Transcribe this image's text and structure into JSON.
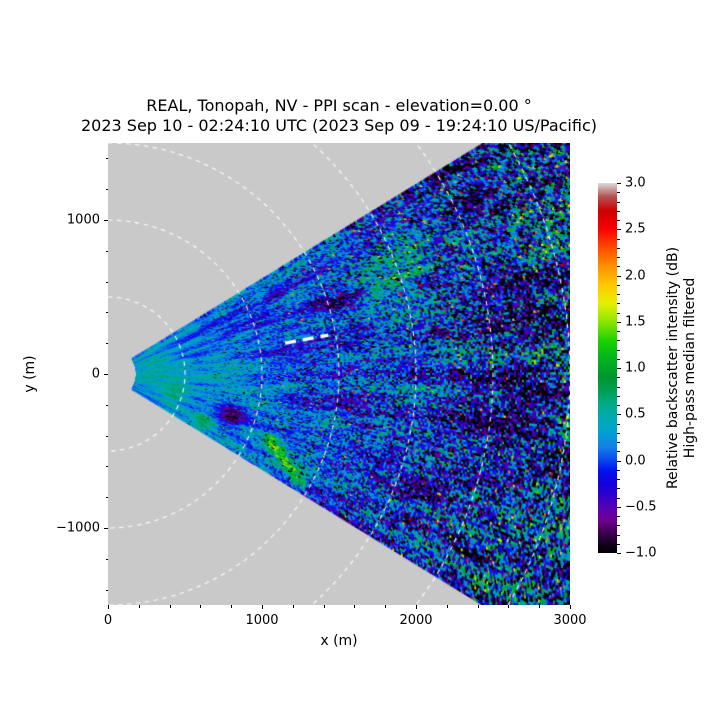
{
  "title": {
    "line1": "REAL, Tonopah, NV - PPI scan - elevation=0.00 °",
    "line2": "2023 Sep 10 - 02:24:10 UTC (2023 Sep 09 - 19:24:10 US/Pacific)"
  },
  "chart_data": {
    "type": "heatmap",
    "kind": "lidar-ppi-scan",
    "description": "Plan Position Indicator scan wedge of relative backscatter intensity, noisy speckle field, blue near-range grading to noisy black/green far-range, on gray background with white dashed range rings",
    "xlabel": "x (m)",
    "ylabel": "y (m)",
    "xlim": [
      0,
      3000
    ],
    "ylim": [
      -1500,
      1500
    ],
    "x_ticks": [
      0,
      1000,
      2000,
      3000
    ],
    "x_tick_labels": [
      "0",
      "1000",
      "2000",
      "3000"
    ],
    "y_ticks": [
      1000,
      0,
      -1000
    ],
    "y_tick_labels": [
      "1000",
      "0",
      "−1000"
    ],
    "x_minor_step": 200,
    "y_minor_step": 200,
    "grid": false,
    "plot_background_color": "#c9c9c9",
    "figure_background_color": "#ffffff",
    "spine_color": "#000000",
    "wedge": {
      "azimuth_min_deg": -31.5,
      "azimuth_max_deg": 31.5,
      "range_min_m": 190,
      "range_max_m": 3400
    },
    "range_rings_m": [
      500,
      1000,
      1500,
      2000,
      2500,
      3000
    ],
    "ring_style": {
      "color": "rgba(255,255,255,0.95)",
      "dash": [
        4.5,
        4.5
      ],
      "width": 1.1
    },
    "annotation_line": {
      "x1_m": 1150,
      "y1_m": 200,
      "x2_m": 1430,
      "y2_m": 252,
      "color": "#ffffff",
      "dash": [
        11,
        7
      ],
      "width": 3.3
    },
    "colorbar": {
      "label_line1": "Relative backscatter intensity (dB)",
      "label_line2": "High-pass median filtered",
      "vmin": -1.0,
      "vmax": 3.0,
      "ticks": [
        3.0,
        2.5,
        2.0,
        1.5,
        1.0,
        0.5,
        0.0,
        -0.5,
        -1.0
      ],
      "tick_labels": [
        "3.0",
        "2.5",
        "2.0",
        "1.5",
        "1.0",
        "0.5",
        "0.0",
        "−0.5",
        "−1.0"
      ],
      "minor_step": 0.1,
      "colormap_stops": [
        {
          "value": -1.0,
          "color": "#000000"
        },
        {
          "value": -0.9,
          "color": "#16001f"
        },
        {
          "value": -0.78,
          "color": "#3c0050"
        },
        {
          "value": -0.65,
          "color": "#6f0090"
        },
        {
          "value": -0.52,
          "color": "#5a00b4"
        },
        {
          "value": -0.4,
          "color": "#3700c8"
        },
        {
          "value": -0.25,
          "color": "#1400dc"
        },
        {
          "value": -0.1,
          "color": "#0014f0"
        },
        {
          "value": 0.0,
          "color": "#0a46f0"
        },
        {
          "value": 0.15,
          "color": "#1482e6"
        },
        {
          "value": 0.3,
          "color": "#00a0d2"
        },
        {
          "value": 0.45,
          "color": "#00aab4"
        },
        {
          "value": 0.6,
          "color": "#00aa8c"
        },
        {
          "value": 0.75,
          "color": "#00a055"
        },
        {
          "value": 0.9,
          "color": "#00962d"
        },
        {
          "value": 1.1,
          "color": "#00b41e"
        },
        {
          "value": 1.3,
          "color": "#1ed200"
        },
        {
          "value": 1.5,
          "color": "#8ce600"
        },
        {
          "value": 1.7,
          "color": "#e6f000"
        },
        {
          "value": 1.9,
          "color": "#ffc800"
        },
        {
          "value": 2.1,
          "color": "#ff9100"
        },
        {
          "value": 2.3,
          "color": "#ff4b00"
        },
        {
          "value": 2.5,
          "color": "#fa0000"
        },
        {
          "value": 2.7,
          "color": "#cd0000"
        },
        {
          "value": 2.85,
          "color": "#b45050"
        },
        {
          "value": 3.0,
          "color": "#dcdcdc"
        }
      ]
    },
    "noise_field": {
      "seed": 20230910,
      "near_mean_db": 0.18,
      "far_mean_shift_db": -0.38,
      "near_sigma": 0.22,
      "far_sigma_gain": 1.05,
      "dark_speck_prob": 0.16,
      "hot_speck_prob": 0.012,
      "features": [
        {
          "type": "streak",
          "x1": 1050,
          "y1": -430,
          "x2": 1260,
          "y2": -710,
          "w": 45,
          "value": 1.0
        },
        {
          "type": "blob",
          "x": 800,
          "y": -270,
          "rad": 80,
          "value": -0.9
        },
        {
          "type": "blob",
          "x": 620,
          "y": -310,
          "rad": 70,
          "value": 0.5
        },
        {
          "type": "blob",
          "x": 430,
          "y": -130,
          "rad": 90,
          "value": 0.4
        },
        {
          "type": "blob",
          "x": 300,
          "y": 60,
          "rad": 120,
          "value": 0.25
        },
        {
          "type": "blob",
          "x": 1850,
          "y": 620,
          "rad": 200,
          "value": 0.45
        },
        {
          "type": "blob",
          "x": 1500,
          "y": 430,
          "rad": 150,
          "value": -0.5
        },
        {
          "type": "blob",
          "x": 2000,
          "y": -500,
          "rad": 180,
          "value": 0.4
        },
        {
          "type": "blob",
          "x": 1200,
          "y": 150,
          "rad": 200,
          "value": -0.15
        }
      ]
    }
  }
}
